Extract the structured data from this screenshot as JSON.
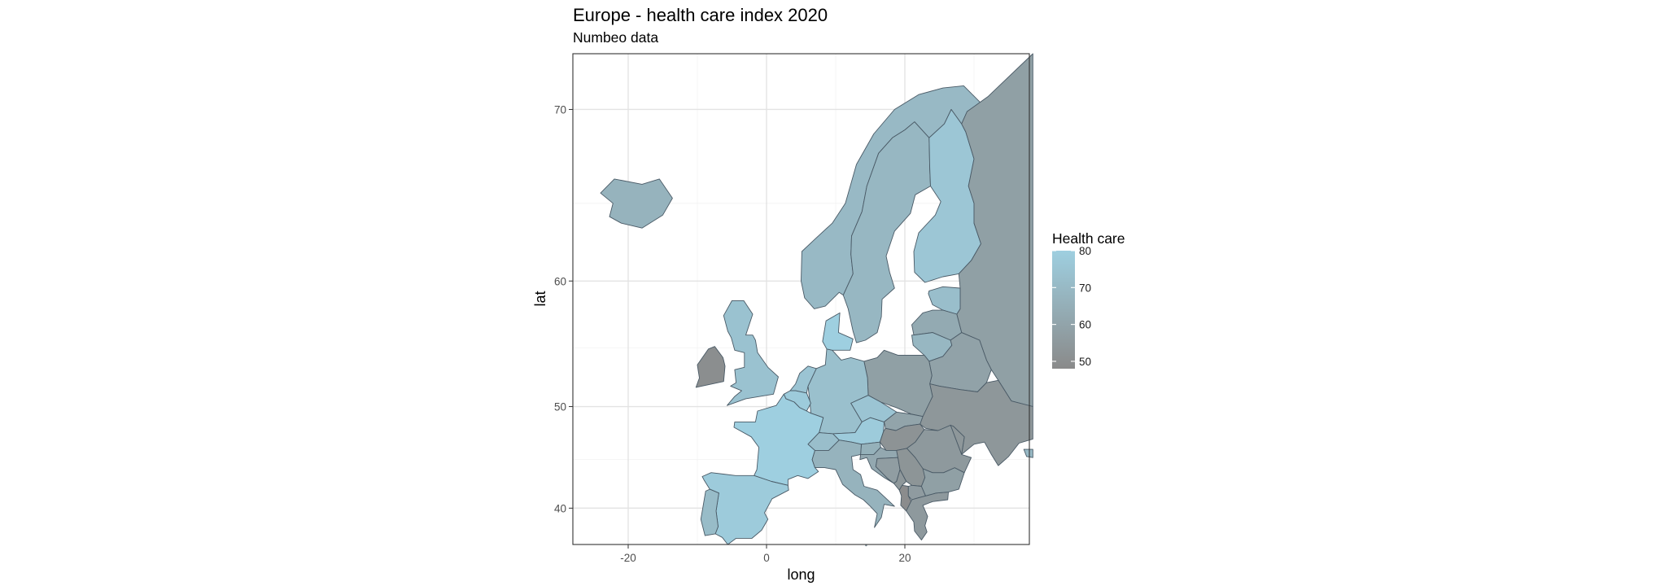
{
  "chart_data": {
    "type": "choropleth-map",
    "title": "Europe - health care index 2020",
    "subtitle": "Numbeo data",
    "xlabel": "long",
    "ylabel": "lat",
    "xlim": [
      -28,
      38
    ],
    "ylim": [
      36,
      72.5
    ],
    "x_ticks": [
      -20,
      0,
      20
    ],
    "y_ticks": [
      40,
      50,
      60,
      70
    ],
    "grid": true,
    "legend": {
      "title": "Health care",
      "placement": "right",
      "range": [
        48,
        80
      ],
      "breaks": [
        80,
        70,
        60,
        50
      ],
      "low_color": "#8a8a8a",
      "high_color": "#9ecfe0"
    },
    "regions": [
      {
        "name": "Iceland",
        "value": 67
      },
      {
        "name": "Norway",
        "value": 70
      },
      {
        "name": "Sweden",
        "value": 69
      },
      {
        "name": "Finland",
        "value": 76
      },
      {
        "name": "Russia",
        "value": 58
      },
      {
        "name": "Estonia",
        "value": 72
      },
      {
        "name": "Latvia",
        "value": 63
      },
      {
        "name": "Lithuania",
        "value": 69
      },
      {
        "name": "Belarus",
        "value": 59
      },
      {
        "name": "Ukraine",
        "value": 54
      },
      {
        "name": "Moldova",
        "value": 54
      },
      {
        "name": "Poland",
        "value": 58
      },
      {
        "name": "Germany",
        "value": 73
      },
      {
        "name": "Denmark",
        "value": 80
      },
      {
        "name": "Netherlands",
        "value": 75
      },
      {
        "name": "Belgium",
        "value": 78
      },
      {
        "name": "United Kingdom",
        "value": 74
      },
      {
        "name": "Ireland",
        "value": 50
      },
      {
        "name": "France",
        "value": 80
      },
      {
        "name": "Spain",
        "value": 78
      },
      {
        "name": "Portugal",
        "value": 71
      },
      {
        "name": "Switzerland",
        "value": 72
      },
      {
        "name": "Austria",
        "value": 78
      },
      {
        "name": "Czechia",
        "value": 75
      },
      {
        "name": "Slovakia",
        "value": 60
      },
      {
        "name": "Hungary",
        "value": 52
      },
      {
        "name": "Slovenia",
        "value": 66
      },
      {
        "name": "Croatia",
        "value": 62
      },
      {
        "name": "Bosnia and Herzegovina",
        "value": 57
      },
      {
        "name": "Serbia",
        "value": 53
      },
      {
        "name": "Montenegro",
        "value": 54
      },
      {
        "name": "Albania",
        "value": 49
      },
      {
        "name": "North Macedonia",
        "value": 56
      },
      {
        "name": "Greece",
        "value": 55
      },
      {
        "name": "Bulgaria",
        "value": 58
      },
      {
        "name": "Romania",
        "value": 55
      },
      {
        "name": "Italy",
        "value": 67
      },
      {
        "name": "Turkey",
        "value": 70
      }
    ]
  }
}
